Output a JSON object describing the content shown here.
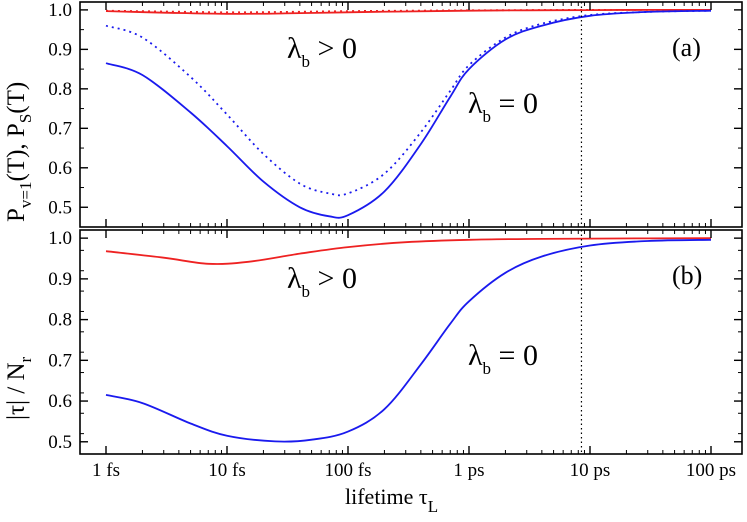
{
  "chart_data": [
    {
      "type": "line",
      "panel": "(a)",
      "x_scale": "log",
      "x_unit": "seconds",
      "xlim": [
        1e-15,
        1e-10
      ],
      "ylim": [
        0.45,
        1.02
      ],
      "ylabel": {
        "p": "P",
        "v_sub": "v=1",
        "mid": "(T),  P",
        "s_sub": "S",
        "end": "(T)"
      },
      "y_ticks": [
        "0.5",
        "0.6",
        "0.7",
        "0.8",
        "0.9",
        "1.0"
      ],
      "y_tick_values": [
        0.5,
        0.6,
        0.7,
        0.8,
        0.9,
        1.0
      ],
      "annotations": [
        {
          "base": "λ",
          "sub": "b",
          "rest": " > 0"
        },
        {
          "base": "λ",
          "sub": "b",
          "rest": " = 0"
        }
      ],
      "vline_x": 8.5e-12,
      "series": [
        {
          "name": "red solid (λb > 0)",
          "color": "#ee2222",
          "dash": "solid",
          "x": [
            1e-15,
            3e-15,
            1e-14,
            3e-14,
            1e-13,
            3e-13,
            1e-12,
            3e-12,
            1e-11,
            3e-11,
            1e-10
          ],
          "y": [
            0.997,
            0.993,
            0.99,
            0.991,
            0.994,
            0.996,
            0.998,
            0.999,
            0.9995,
            1.0,
            1.0
          ]
        },
        {
          "name": "red dotted (λb > 0)",
          "color": "#ee2222",
          "dash": "dotted",
          "x": [
            1e-15,
            3e-15,
            1e-14,
            3e-14,
            1e-13,
            3e-13,
            1e-12,
            3e-12,
            1e-11,
            3e-11,
            1e-10
          ],
          "y": [
            0.998,
            0.996,
            0.994,
            0.995,
            0.997,
            0.998,
            0.999,
            0.9995,
            1.0,
            1.0,
            1.0
          ]
        },
        {
          "name": "blue solid (λb = 0)",
          "color": "#1a1aee",
          "dash": "solid",
          "x": [
            1e-15,
            2e-15,
            5e-15,
            1e-14,
            2e-14,
            4e-14,
            7e-14,
            1e-13,
            2e-13,
            4e-13,
            7e-13,
            1e-12,
            2e-12,
            4e-12,
            1e-11,
            3e-11,
            1e-10
          ],
          "y": [
            0.865,
            0.835,
            0.74,
            0.655,
            0.565,
            0.5,
            0.477,
            0.48,
            0.54,
            0.66,
            0.78,
            0.85,
            0.925,
            0.96,
            0.985,
            0.995,
            0.998
          ]
        },
        {
          "name": "blue dotted (λb = 0)",
          "color": "#1a1aee",
          "dash": "dotted",
          "x": [
            1e-15,
            2e-15,
            5e-15,
            1e-14,
            2e-14,
            4e-14,
            7e-14,
            1e-13,
            2e-13,
            4e-13,
            7e-13,
            1e-12,
            2e-12,
            4e-12,
            1e-11,
            3e-11,
            1e-10
          ],
          "y": [
            0.96,
            0.93,
            0.83,
            0.735,
            0.635,
            0.56,
            0.535,
            0.535,
            0.585,
            0.69,
            0.795,
            0.86,
            0.93,
            0.965,
            0.987,
            0.995,
            0.998
          ]
        }
      ]
    },
    {
      "type": "line",
      "panel": "(b)",
      "x_scale": "log",
      "x_unit": "seconds",
      "xlim": [
        1e-15,
        1e-10
      ],
      "ylim": [
        0.47,
        1.02
      ],
      "ylabel": {
        "main": "|τ| / N",
        "sub": "r"
      },
      "y_ticks": [
        "0.5",
        "0.6",
        "0.7",
        "0.8",
        "0.9",
        "1.0"
      ],
      "y_tick_values": [
        0.5,
        0.6,
        0.7,
        0.8,
        0.9,
        1.0
      ],
      "annotations": [
        {
          "base": "λ",
          "sub": "b",
          "rest": " > 0"
        },
        {
          "base": "λ",
          "sub": "b",
          "rest": " = 0"
        }
      ],
      "vline_x": 8.5e-12,
      "series": [
        {
          "name": "red solid (λb > 0)",
          "color": "#ee2222",
          "dash": "solid",
          "x": [
            1e-15,
            3e-15,
            7e-15,
            1.5e-14,
            4e-14,
            1e-13,
            3e-13,
            1e-12,
            3e-12,
            1e-11,
            1e-10
          ],
          "y": [
            0.968,
            0.952,
            0.937,
            0.942,
            0.962,
            0.978,
            0.99,
            0.996,
            0.998,
            0.999,
            1.0
          ]
        },
        {
          "name": "blue solid (λb = 0)",
          "color": "#1a1aee",
          "dash": "solid",
          "x": [
            1e-15,
            2e-15,
            5e-15,
            1e-14,
            2.5e-14,
            5e-14,
            1e-13,
            2e-13,
            4e-13,
            7e-13,
            1e-12,
            2e-12,
            4e-12,
            1e-11,
            3e-11,
            1e-10
          ],
          "y": [
            0.615,
            0.595,
            0.545,
            0.515,
            0.501,
            0.505,
            0.525,
            0.58,
            0.69,
            0.79,
            0.845,
            0.915,
            0.955,
            0.982,
            0.993,
            0.996
          ]
        }
      ]
    }
  ],
  "x_axis": {
    "tick_values": [
      1e-15,
      1e-14,
      1e-13,
      1e-12,
      1e-11,
      1e-10
    ],
    "tick_labels": [
      "1 fs",
      "10 fs",
      "100 fs",
      "1 ps",
      "10 ps",
      "100 ps"
    ],
    "title": {
      "main": "lifetime τ",
      "sub": "L"
    }
  },
  "colors": {
    "red": "#ee2222",
    "blue": "#1a1aee",
    "axis": "#000000"
  }
}
